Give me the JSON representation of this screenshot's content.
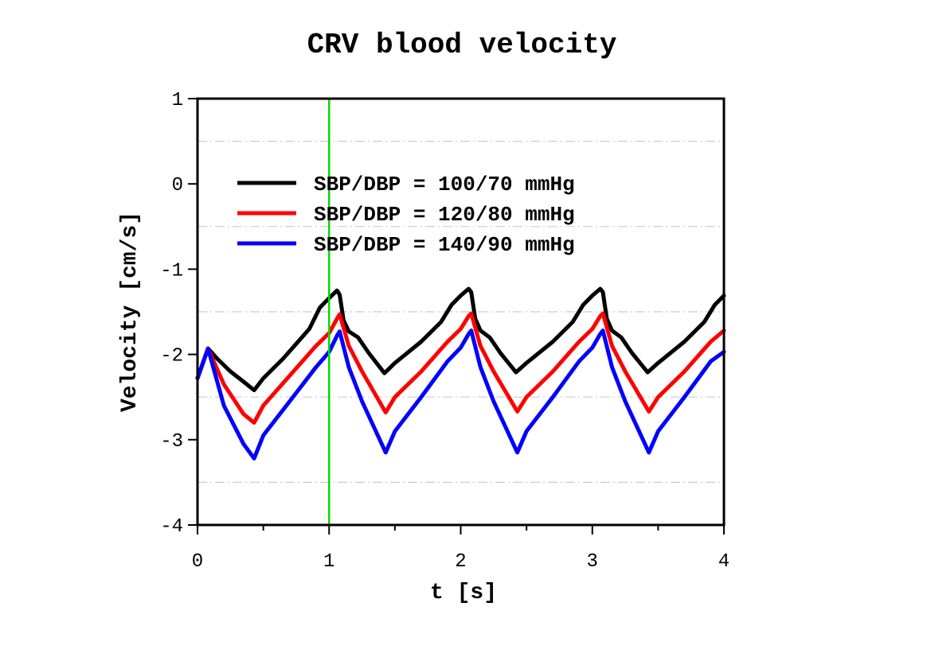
{
  "chart_data": {
    "type": "line",
    "title": "CRV blood velocity",
    "xlabel": "t [s]",
    "ylabel": "Velocity [cm/s]",
    "xlim": [
      0,
      4
    ],
    "ylim": [
      -4,
      1
    ],
    "xticks": [
      0,
      1,
      2,
      3,
      4
    ],
    "yticks": [
      -4,
      -3,
      -2,
      -1,
      0,
      1
    ],
    "xtick_labels": [
      "0",
      "1",
      "2",
      "3",
      "4"
    ],
    "ytick_labels": [
      "-4",
      "-3",
      "-2",
      "-1",
      "0",
      "1"
    ],
    "grid": "horizontal dash-dot at half steps",
    "legend_position": "top-left",
    "vertical_marker": {
      "x": 1,
      "color": "#00dd00"
    },
    "series": [
      {
        "name": "SBP/DBP = 100/70 mmHg",
        "color": "#000000",
        "x": [
          0,
          0.08,
          0.15,
          0.25,
          0.35,
          0.43,
          0.5,
          0.65,
          0.85,
          0.93,
          1.0,
          1.06,
          1.08,
          1.11,
          1.15,
          1.22,
          1.3,
          1.42,
          1.5,
          1.7,
          1.85,
          1.93,
          2.0,
          2.06,
          2.08,
          2.11,
          2.15,
          2.22,
          2.3,
          2.42,
          2.5,
          2.7,
          2.85,
          2.93,
          3.0,
          3.06,
          3.08,
          3.11,
          3.15,
          3.22,
          3.3,
          3.42,
          3.5,
          3.7,
          3.85,
          3.93,
          4.0
        ],
        "y": [
          -2.28,
          -1.93,
          -2.05,
          -2.2,
          -2.32,
          -2.42,
          -2.28,
          -2.05,
          -1.7,
          -1.45,
          -1.34,
          -1.25,
          -1.3,
          -1.6,
          -1.73,
          -1.8,
          -1.98,
          -2.22,
          -2.1,
          -1.85,
          -1.62,
          -1.42,
          -1.31,
          -1.23,
          -1.27,
          -1.58,
          -1.72,
          -1.8,
          -1.98,
          -2.21,
          -2.1,
          -1.85,
          -1.62,
          -1.42,
          -1.31,
          -1.23,
          -1.27,
          -1.58,
          -1.72,
          -1.8,
          -1.98,
          -2.21,
          -2.1,
          -1.85,
          -1.62,
          -1.42,
          -1.31
        ]
      },
      {
        "name": "SBP/DBP = 120/80 mmHg",
        "color": "#ff0000",
        "x": [
          0,
          0.08,
          0.2,
          0.35,
          0.43,
          0.5,
          0.7,
          0.9,
          1.0,
          1.06,
          1.08,
          1.15,
          1.25,
          1.43,
          1.5,
          1.7,
          1.9,
          2.0,
          2.06,
          2.08,
          2.15,
          2.25,
          2.43,
          2.5,
          2.7,
          2.9,
          3.0,
          3.06,
          3.08,
          3.15,
          3.25,
          3.43,
          3.5,
          3.7,
          3.9,
          4.0
        ],
        "y": [
          -2.28,
          -1.93,
          -2.35,
          -2.7,
          -2.8,
          -2.6,
          -2.25,
          -1.9,
          -1.75,
          -1.58,
          -1.53,
          -1.9,
          -2.2,
          -2.68,
          -2.5,
          -2.2,
          -1.85,
          -1.7,
          -1.55,
          -1.52,
          -1.9,
          -2.2,
          -2.67,
          -2.5,
          -2.2,
          -1.85,
          -1.7,
          -1.55,
          -1.52,
          -1.9,
          -2.2,
          -2.67,
          -2.5,
          -2.2,
          -1.85,
          -1.72
        ]
      },
      {
        "name": "SBP/DBP = 140/90 mmHg",
        "color": "#0000ff",
        "x": [
          0,
          0.08,
          0.2,
          0.35,
          0.43,
          0.5,
          0.7,
          0.9,
          1.0,
          1.06,
          1.08,
          1.15,
          1.25,
          1.43,
          1.5,
          1.7,
          1.9,
          2.0,
          2.06,
          2.08,
          2.15,
          2.25,
          2.43,
          2.5,
          2.7,
          2.9,
          3.0,
          3.06,
          3.08,
          3.15,
          3.25,
          3.43,
          3.5,
          3.7,
          3.9,
          4.0
        ],
        "y": [
          -2.28,
          -1.93,
          -2.6,
          -3.05,
          -3.22,
          -2.95,
          -2.55,
          -2.15,
          -1.97,
          -1.78,
          -1.73,
          -2.15,
          -2.55,
          -3.15,
          -2.9,
          -2.5,
          -2.08,
          -1.92,
          -1.76,
          -1.72,
          -2.15,
          -2.55,
          -3.15,
          -2.9,
          -2.5,
          -2.08,
          -1.92,
          -1.76,
          -1.72,
          -2.15,
          -2.55,
          -3.15,
          -2.9,
          -2.5,
          -2.08,
          -1.97
        ]
      }
    ]
  }
}
